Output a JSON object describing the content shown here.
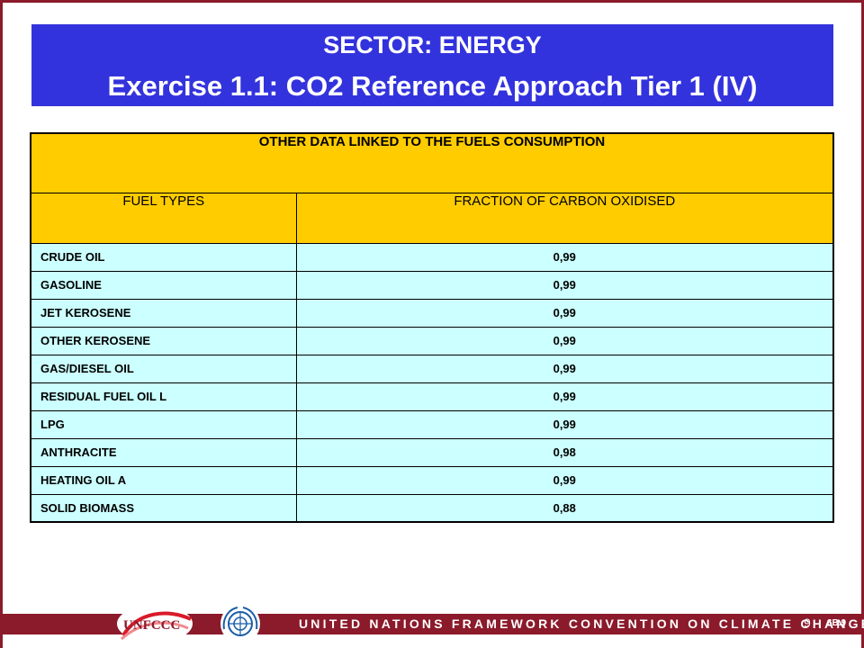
{
  "title": {
    "line1": "SECTOR: ENERGY",
    "line2": "Exercise 1.1: CO2 Reference Approach Tier 1 (IV)"
  },
  "table": {
    "heading": "OTHER DATA LINKED TO THE FUELS CONSUMPTION",
    "columns": [
      "FUEL TYPES",
      "FRACTION OF CARBON OXIDISED"
    ],
    "rows": [
      {
        "fuel": "CRUDE OIL",
        "value": "0,99"
      },
      {
        "fuel": "GASOLINE",
        "value": "0,99"
      },
      {
        "fuel": "JET KEROSENE",
        "value": "0,99"
      },
      {
        "fuel": "OTHER KEROSENE",
        "value": "0,99"
      },
      {
        "fuel": "GAS/DIESEL OIL",
        "value": "0,99"
      },
      {
        "fuel": "RESIDUAL FUEL OIL L",
        "value": "0,99"
      },
      {
        "fuel": "LPG",
        "value": "0,99"
      },
      {
        "fuel": "ANTHRACITE",
        "value": "0,98"
      },
      {
        "fuel": "HEATING OIL A",
        "value": "0,99"
      },
      {
        "fuel": "SOLID BIOMASS",
        "value": "0,88"
      }
    ]
  },
  "footer": {
    "logo_text": "UNFCCC",
    "banner_text": "UNITED NATIONS FRAMEWORK CONVENTION ON CLIMATE CHANGE",
    "page_number": "9",
    "slide_code": "6B.9",
    "icons": [
      "unfccc-logo",
      "un-emblem"
    ]
  },
  "colors": {
    "title_bg": "#3333dd",
    "header_bg": "#ffcc00",
    "row_bg": "#ccffff",
    "footer_band": "#8b1a2b"
  }
}
